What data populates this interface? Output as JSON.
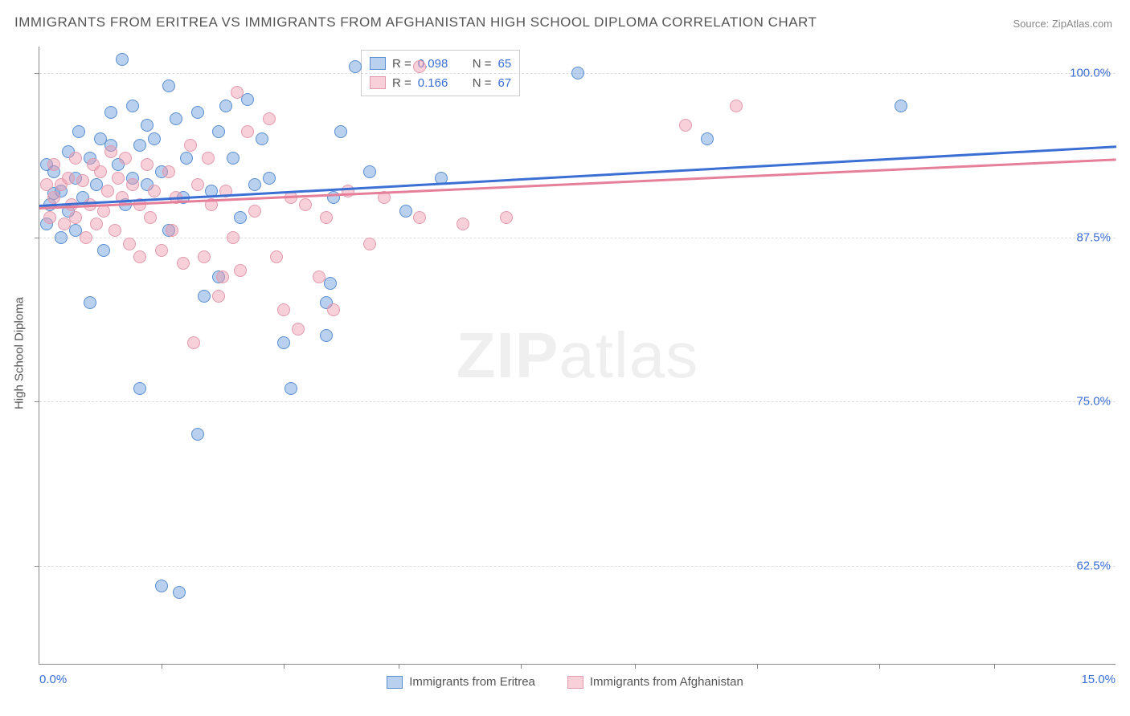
{
  "title": "IMMIGRANTS FROM ERITREA VS IMMIGRANTS FROM AFGHANISTAN HIGH SCHOOL DIPLOMA CORRELATION CHART",
  "source": "Source: ZipAtlas.com",
  "watermark_bold": "ZIP",
  "watermark_light": "atlas",
  "chart": {
    "type": "scatter",
    "xlim": [
      0.0,
      15.0
    ],
    "ylim": [
      55.0,
      102.0
    ],
    "x_axis_min_label": "0.0%",
    "x_axis_max_label": "15.0%",
    "y_axis_label": "High School Diploma",
    "y_ticks": [
      62.5,
      75.0,
      87.5,
      100.0
    ],
    "y_tick_labels": [
      "62.5%",
      "75.0%",
      "87.5%",
      "100.0%"
    ],
    "x_tick_positions": [
      1.7,
      3.4,
      5.0,
      6.7,
      8.3,
      10.0,
      11.7,
      13.3
    ],
    "grid_color": "#dddddd",
    "background_color": "#ffffff",
    "axis_color": "#888888",
    "tick_label_color": "#3b6fd4",
    "title_color": "#555555"
  },
  "series": [
    {
      "name": "Immigrants from Eritrea",
      "fill_color": "rgba(100,150,220,0.45)",
      "stroke_color": "#5a8fd0",
      "line_color": "#3b6fd4",
      "R_label": "R =",
      "R_value": "0.098",
      "N_label": "N =",
      "N_value": "65",
      "trend": {
        "x1": 0.0,
        "y1": 90.0,
        "x2": 15.0,
        "y2": 94.5
      },
      "points": [
        [
          0.1,
          88.5
        ],
        [
          0.1,
          93.0
        ],
        [
          0.15,
          90.0
        ],
        [
          0.2,
          92.5
        ],
        [
          0.2,
          90.8
        ],
        [
          0.3,
          91.0
        ],
        [
          0.3,
          87.5
        ],
        [
          0.4,
          94.0
        ],
        [
          0.4,
          89.5
        ],
        [
          0.5,
          92.0
        ],
        [
          0.5,
          88.0
        ],
        [
          0.55,
          95.5
        ],
        [
          0.6,
          90.5
        ],
        [
          0.7,
          93.5
        ],
        [
          0.7,
          82.5
        ],
        [
          0.8,
          91.5
        ],
        [
          0.85,
          95.0
        ],
        [
          0.9,
          86.5
        ],
        [
          1.0,
          97.0
        ],
        [
          1.0,
          94.5
        ],
        [
          1.1,
          93.0
        ],
        [
          1.15,
          101.0
        ],
        [
          1.2,
          90.0
        ],
        [
          1.3,
          92.0
        ],
        [
          1.3,
          97.5
        ],
        [
          1.4,
          94.5
        ],
        [
          1.4,
          76.0
        ],
        [
          1.5,
          96.0
        ],
        [
          1.5,
          91.5
        ],
        [
          1.6,
          95.0
        ],
        [
          1.7,
          61.0
        ],
        [
          1.7,
          92.5
        ],
        [
          1.8,
          99.0
        ],
        [
          1.8,
          88.0
        ],
        [
          1.9,
          96.5
        ],
        [
          1.95,
          60.5
        ],
        [
          2.0,
          90.5
        ],
        [
          2.05,
          93.5
        ],
        [
          2.2,
          97.0
        ],
        [
          2.2,
          72.5
        ],
        [
          2.3,
          83.0
        ],
        [
          2.4,
          91.0
        ],
        [
          2.5,
          95.5
        ],
        [
          2.5,
          84.5
        ],
        [
          2.6,
          97.5
        ],
        [
          2.7,
          93.5
        ],
        [
          2.8,
          89.0
        ],
        [
          2.9,
          98.0
        ],
        [
          3.0,
          91.5
        ],
        [
          3.1,
          95.0
        ],
        [
          3.2,
          92.0
        ],
        [
          3.4,
          79.5
        ],
        [
          3.5,
          76.0
        ],
        [
          4.0,
          82.5
        ],
        [
          4.0,
          80.0
        ],
        [
          4.05,
          84.0
        ],
        [
          4.1,
          90.5
        ],
        [
          4.2,
          95.5
        ],
        [
          4.4,
          100.5
        ],
        [
          4.6,
          92.5
        ],
        [
          5.1,
          89.5
        ],
        [
          5.6,
          92.0
        ],
        [
          7.5,
          100.0
        ],
        [
          9.3,
          95.0
        ],
        [
          12.0,
          97.5
        ]
      ]
    },
    {
      "name": "Immigrants from Afghanistan",
      "fill_color": "rgba(240,150,170,0.45)",
      "stroke_color": "#e29aad",
      "line_color": "#e57f9a",
      "R_label": "R =",
      "R_value": " 0.166",
      "N_label": "N =",
      "N_value": "67",
      "trend": {
        "x1": 0.0,
        "y1": 89.8,
        "x2": 15.0,
        "y2": 93.5
      },
      "points": [
        [
          0.1,
          91.5
        ],
        [
          0.15,
          89.0
        ],
        [
          0.2,
          93.0
        ],
        [
          0.2,
          90.5
        ],
        [
          0.3,
          91.5
        ],
        [
          0.35,
          88.5
        ],
        [
          0.4,
          92.0
        ],
        [
          0.45,
          90.0
        ],
        [
          0.5,
          93.5
        ],
        [
          0.5,
          89.0
        ],
        [
          0.6,
          91.8
        ],
        [
          0.65,
          87.5
        ],
        [
          0.7,
          90.0
        ],
        [
          0.75,
          93.0
        ],
        [
          0.8,
          88.5
        ],
        [
          0.85,
          92.5
        ],
        [
          0.9,
          89.5
        ],
        [
          0.95,
          91.0
        ],
        [
          1.0,
          94.0
        ],
        [
          1.05,
          88.0
        ],
        [
          1.1,
          92.0
        ],
        [
          1.15,
          90.5
        ],
        [
          1.2,
          93.5
        ],
        [
          1.25,
          87.0
        ],
        [
          1.3,
          91.5
        ],
        [
          1.4,
          86.0
        ],
        [
          1.4,
          90.0
        ],
        [
          1.5,
          93.0
        ],
        [
          1.55,
          89.0
        ],
        [
          1.6,
          91.0
        ],
        [
          1.7,
          86.5
        ],
        [
          1.8,
          92.5
        ],
        [
          1.85,
          88.0
        ],
        [
          1.9,
          90.5
        ],
        [
          2.0,
          85.5
        ],
        [
          2.1,
          94.5
        ],
        [
          2.15,
          79.5
        ],
        [
          2.2,
          91.5
        ],
        [
          2.3,
          86.0
        ],
        [
          2.35,
          93.5
        ],
        [
          2.4,
          90.0
        ],
        [
          2.5,
          83.0
        ],
        [
          2.55,
          84.5
        ],
        [
          2.6,
          91.0
        ],
        [
          2.7,
          87.5
        ],
        [
          2.75,
          98.5
        ],
        [
          2.8,
          85.0
        ],
        [
          2.9,
          95.5
        ],
        [
          3.0,
          89.5
        ],
        [
          3.2,
          96.5
        ],
        [
          3.3,
          86.0
        ],
        [
          3.4,
          82.0
        ],
        [
          3.5,
          90.5
        ],
        [
          3.6,
          80.5
        ],
        [
          3.7,
          90.0
        ],
        [
          3.9,
          84.5
        ],
        [
          4.0,
          89.0
        ],
        [
          4.1,
          82.0
        ],
        [
          4.3,
          91.0
        ],
        [
          4.6,
          87.0
        ],
        [
          4.8,
          90.5
        ],
        [
          5.3,
          89.0
        ],
        [
          5.3,
          100.5
        ],
        [
          5.9,
          88.5
        ],
        [
          6.5,
          89.0
        ],
        [
          9.0,
          96.0
        ],
        [
          9.7,
          97.5
        ]
      ]
    }
  ],
  "legend_bottom": [
    "Immigrants from Eritrea",
    "Immigrants from Afghanistan"
  ]
}
